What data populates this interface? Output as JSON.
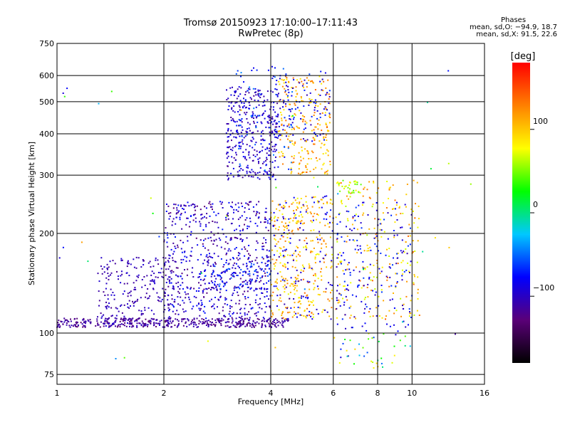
{
  "header": {
    "title_line1": "Tromsø 20150923 17:10:00–17:11:43",
    "title_line2": "RwPretec (8p)"
  },
  "phases": {
    "title": "Phases",
    "line_o": "mean, sd,O: −94.9, 18.7",
    "line_x": "mean, sd,X:  91.5, 22.6"
  },
  "colorbar": {
    "unit": "[deg]",
    "ticks": [
      "100",
      "0",
      "−100"
    ],
    "tick_values": [
      100,
      0,
      -100
    ],
    "range": [
      -180,
      180
    ],
    "colors": [
      "#000000",
      "#5a0078",
      "#0000ff",
      "#00c8ff",
      "#00ff00",
      "#ffff00",
      "#ff8000",
      "#ff0000"
    ]
  },
  "chart_data": {
    "type": "scatter",
    "xlabel": "Frequency [MHz]",
    "ylabel": "Stationary phase Virtual Height [km]",
    "x_scale": "log",
    "y_scale": "log",
    "xlim": [
      1,
      16
    ],
    "ylim": [
      70,
      750
    ],
    "x_ticks": [
      "1",
      "2",
      "4",
      "6",
      "8",
      "10",
      "16"
    ],
    "x_tick_values": [
      1,
      2,
      4,
      6,
      8,
      10,
      16
    ],
    "y_ticks": [
      "750",
      "600",
      "500",
      "400",
      "300",
      "200",
      "100",
      "75"
    ],
    "y_tick_values": [
      750,
      600,
      500,
      400,
      300,
      200,
      100,
      75
    ],
    "grid": true,
    "point_groups": [
      {
        "x_range": [
          1.0,
          4.5
        ],
        "y_range": [
          104,
          111
        ],
        "phase_range": [
          -130,
          -100
        ],
        "count": 420
      },
      {
        "x_range": [
          1.3,
          2.2
        ],
        "y_range": [
          105,
          170
        ],
        "phase_range": [
          -120,
          -90
        ],
        "count": 260
      },
      {
        "x_range": [
          2.0,
          4.0
        ],
        "y_range": [
          110,
          250
        ],
        "phase_range": [
          -130,
          -70
        ],
        "count": 620
      },
      {
        "x_range": [
          2.6,
          4.0
        ],
        "y_range": [
          135,
          165
        ],
        "phase_range": [
          -110,
          -50
        ],
        "count": 120
      },
      {
        "x_range": [
          3.0,
          4.2
        ],
        "y_range": [
          290,
          560
        ],
        "phase_range": [
          -120,
          -80
        ],
        "count": 340
      },
      {
        "x_range": [
          3.2,
          4.6
        ],
        "y_range": [
          300,
          640
        ],
        "phase_range": [
          -90,
          -40
        ],
        "count": 90
      },
      {
        "x_range": [
          4.2,
          5.9
        ],
        "y_range": [
          300,
          600
        ],
        "phase_range": [
          80,
          140
        ],
        "count": 230
      },
      {
        "x_range": [
          4.0,
          5.9
        ],
        "y_range": [
          380,
          620
        ],
        "phase_range": [
          -110,
          -60
        ],
        "count": 110
      },
      {
        "x_range": [
          4.0,
          6.0
        ],
        "y_range": [
          110,
          260
        ],
        "phase_range": [
          70,
          140
        ],
        "count": 330
      },
      {
        "x_range": [
          4.0,
          6.0
        ],
        "y_range": [
          110,
          260
        ],
        "phase_range": [
          -110,
          -70
        ],
        "count": 120
      },
      {
        "x_range": [
          6.1,
          10.5
        ],
        "y_range": [
          110,
          290
        ],
        "phase_range": [
          60,
          140
        ],
        "count": 220
      },
      {
        "x_range": [
          6.1,
          10.0
        ],
        "y_range": [
          100,
          250
        ],
        "phase_range": [
          -110,
          -60
        ],
        "count": 180
      },
      {
        "x_range": [
          6.2,
          7.2
        ],
        "y_range": [
          265,
          290
        ],
        "phase_range": [
          40,
          90
        ],
        "count": 30
      },
      {
        "x_range": [
          6.0,
          10.0
        ],
        "y_range": [
          78,
          100
        ],
        "phase_range": [
          -100,
          100
        ],
        "count": 40
      },
      {
        "x_range": [
          1.0,
          16.0
        ],
        "y_range": [
          80,
          650
        ],
        "phase_range": [
          -120,
          120
        ],
        "count": 40
      }
    ]
  }
}
